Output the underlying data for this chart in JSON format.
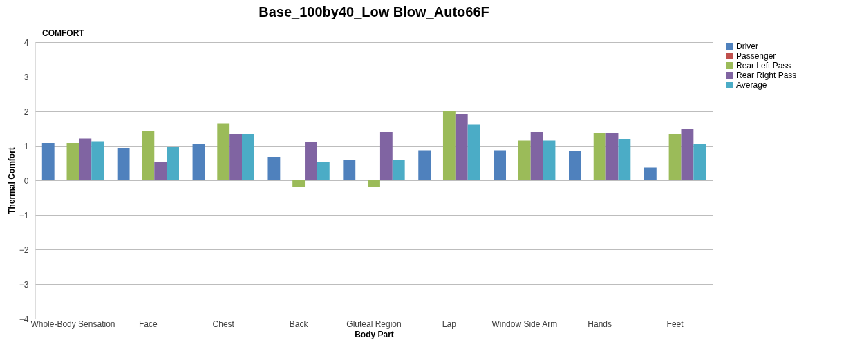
{
  "chart_data": {
    "type": "bar",
    "title": "Base_100by40_Low Blow_Auto66F",
    "xlabel": "Body Part",
    "ylabel": "Thermal Comfort",
    "annotations": [
      "COMFORT"
    ],
    "categories": [
      "Whole-Body Sensation",
      "Face",
      "Chest",
      "Back",
      "Gluteal Region",
      "Lap",
      "Window Side Arm",
      "Hands",
      "Feet"
    ],
    "series": [
      {
        "name": "Driver",
        "color": "#4f81bd",
        "values": [
          1.08,
          0.94,
          1.05,
          0.68,
          0.58,
          0.87,
          0.87,
          0.84,
          0.37
        ]
      },
      {
        "name": "Passenger",
        "color": "#c0504d",
        "values": [
          null,
          null,
          null,
          null,
          null,
          null,
          null,
          null,
          null
        ]
      },
      {
        "name": "Rear Left Pass",
        "color": "#9bbb59",
        "values": [
          1.08,
          1.43,
          1.65,
          -0.19,
          -0.19,
          2.0,
          1.15,
          1.37,
          1.34
        ]
      },
      {
        "name": "Rear Right Pass",
        "color": "#8064a2",
        "values": [
          1.21,
          0.53,
          1.34,
          1.11,
          1.4,
          1.92,
          1.4,
          1.37,
          1.48
        ]
      },
      {
        "name": "Average",
        "color": "#4bacc6",
        "values": [
          1.13,
          0.97,
          1.34,
          0.54,
          0.59,
          1.61,
          1.15,
          1.2,
          1.06
        ]
      }
    ],
    "ylim": [
      -4,
      4
    ],
    "yticks": [
      -4,
      -3,
      -2,
      -1,
      0,
      1,
      2,
      3,
      4
    ],
    "grid": "y",
    "legend": "right"
  }
}
